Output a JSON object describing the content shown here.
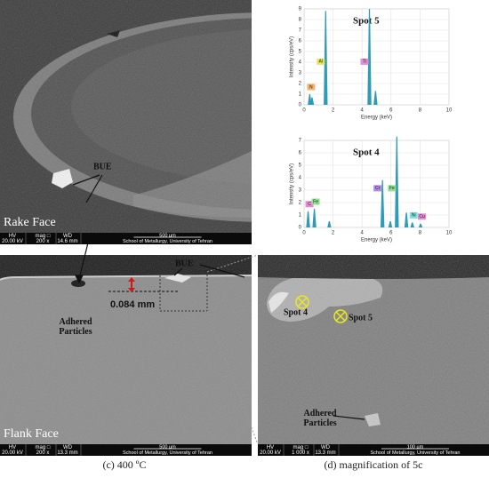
{
  "panels": {
    "rake": {
      "face_label": "Rake Face",
      "annotation": "BUE",
      "info_bar": {
        "hv_label": "HV",
        "hv": "20.00 kV",
        "mag_label": "mag □",
        "mag": "200 x",
        "wd_label": "WD",
        "wd": "14.6 mm",
        "scale": "500 µm",
        "institution": "School of Metallurgy, University of Tehran"
      }
    },
    "flank": {
      "face_label": "Flank Face",
      "annotation": "BUE",
      "measurement": "0.084 mm",
      "particles_label": "Adhered Particles",
      "info_bar": {
        "hv_label": "HV",
        "hv": "20.00 kV",
        "mag_label": "mag □",
        "mag": "200 x",
        "wd_label": "WD",
        "wd": "13.3 mm",
        "scale": "500 µm",
        "institution": "School of Metallurgy, University of Tehran"
      },
      "caption": "(c) 400 ºC"
    },
    "magnified": {
      "spot_labels": [
        "Spot 4",
        "Spot 5"
      ],
      "particles_label": "Adhered Particles",
      "info_bar": {
        "hv_label": "HV",
        "hv": "20.00 kV",
        "mag_label": "mag □",
        "mag": "1 000 x",
        "wd_label": "WD",
        "wd": "13.3 mm",
        "scale": "100 µm",
        "institution": "School of Metallurgy, University of Tehran"
      },
      "caption": "(d) magnification of 5c"
    }
  },
  "spectra": [
    {
      "title": "Spot 5",
      "x_label": "Energy (keV)",
      "y_label": "Intensity (cps/eV)",
      "xlim": [
        0,
        10
      ],
      "ylim": [
        0,
        9
      ],
      "xticks": [
        0,
        2,
        4,
        6,
        8,
        10
      ],
      "yticks": [
        0,
        1,
        2,
        3,
        4,
        5,
        6,
        7,
        8,
        9
      ],
      "color": "#2f9bb5",
      "peaks": [
        {
          "energy": 0.39,
          "intensity": 1.0,
          "label": "N",
          "label_color": "#f6b26b"
        },
        {
          "energy": 0.55,
          "intensity": 0.7
        },
        {
          "energy": 1.49,
          "intensity": 8.8,
          "label": "Al",
          "label_color": "#e6e65a"
        },
        {
          "energy": 4.51,
          "intensity": 9.0,
          "label": "Ti",
          "label_color": "#e58ad6"
        },
        {
          "energy": 4.93,
          "intensity": 1.3
        }
      ]
    },
    {
      "title": "Spot 4",
      "x_label": "Energy (keV)",
      "y_label": "Intensity (cps/eV)",
      "xlim": [
        0,
        10
      ],
      "ylim": [
        0,
        7
      ],
      "xticks": [
        0,
        2,
        4,
        6,
        8,
        10
      ],
      "yticks": [
        0,
        1,
        2,
        3,
        4,
        5,
        6,
        7
      ],
      "color": "#2f9bb5",
      "peaks": [
        {
          "energy": 0.28,
          "intensity": 1.3,
          "label": "C",
          "label_color": "#e58ad6"
        },
        {
          "energy": 0.71,
          "intensity": 1.5,
          "label": "Fe",
          "label_color": "#8fe08f"
        },
        {
          "energy": 1.74,
          "intensity": 0.5
        },
        {
          "energy": 5.41,
          "intensity": 3.8,
          "label": "Cr",
          "label_color": "#b38be0"
        },
        {
          "energy": 5.95,
          "intensity": 0.5
        },
        {
          "energy": 6.4,
          "intensity": 7.3,
          "label": "Fe",
          "label_color": "#8fe08f"
        },
        {
          "energy": 7.06,
          "intensity": 1.2
        },
        {
          "energy": 7.47,
          "intensity": 0.4,
          "label": "Ni",
          "label_color": "#7fe0e0"
        },
        {
          "energy": 8.04,
          "intensity": 0.3,
          "label": "Cu",
          "label_color": "#e58ad6"
        }
      ]
    }
  ]
}
